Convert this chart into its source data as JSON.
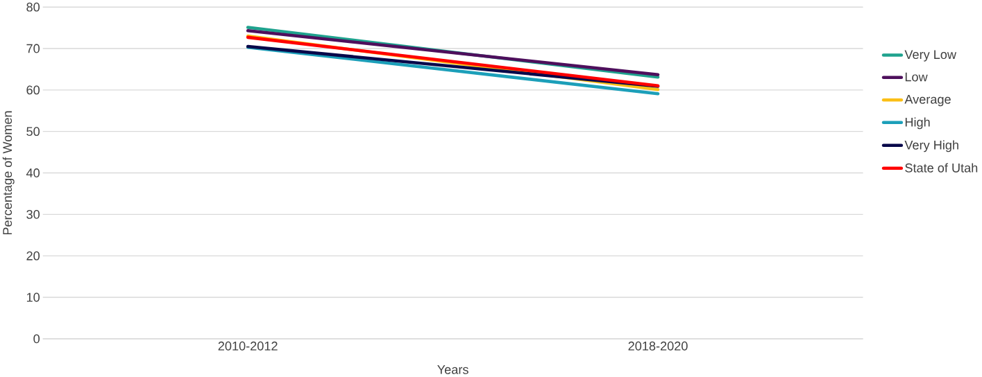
{
  "chart_data": {
    "type": "line",
    "xlabel": "Years",
    "ylabel": "Percentage of Women",
    "categories": [
      "2010-2012",
      "2018-2020"
    ],
    "ylim": [
      0,
      80
    ],
    "yticks": [
      0,
      10,
      20,
      30,
      40,
      50,
      60,
      70,
      80
    ],
    "grid": "y",
    "legend": "right",
    "marker": "none",
    "line_style": "solid",
    "series": [
      {
        "name": "Very Low",
        "color": "#1fa28e",
        "values": [
          75.1,
          63.1
        ]
      },
      {
        "name": "Low",
        "color": "#4e0f5c",
        "values": [
          74.3,
          63.7
        ]
      },
      {
        "name": "Average",
        "color": "#fbbf16",
        "values": [
          73.0,
          60.1
        ]
      },
      {
        "name": "High",
        "color": "#1c9fb9",
        "values": [
          70.3,
          59.1
        ]
      },
      {
        "name": "Very High",
        "color": "#08084a",
        "values": [
          70.5,
          60.9
        ]
      },
      {
        "name": "State of Utah",
        "color": "#ff0000",
        "values": [
          72.7,
          61.0
        ]
      }
    ]
  }
}
